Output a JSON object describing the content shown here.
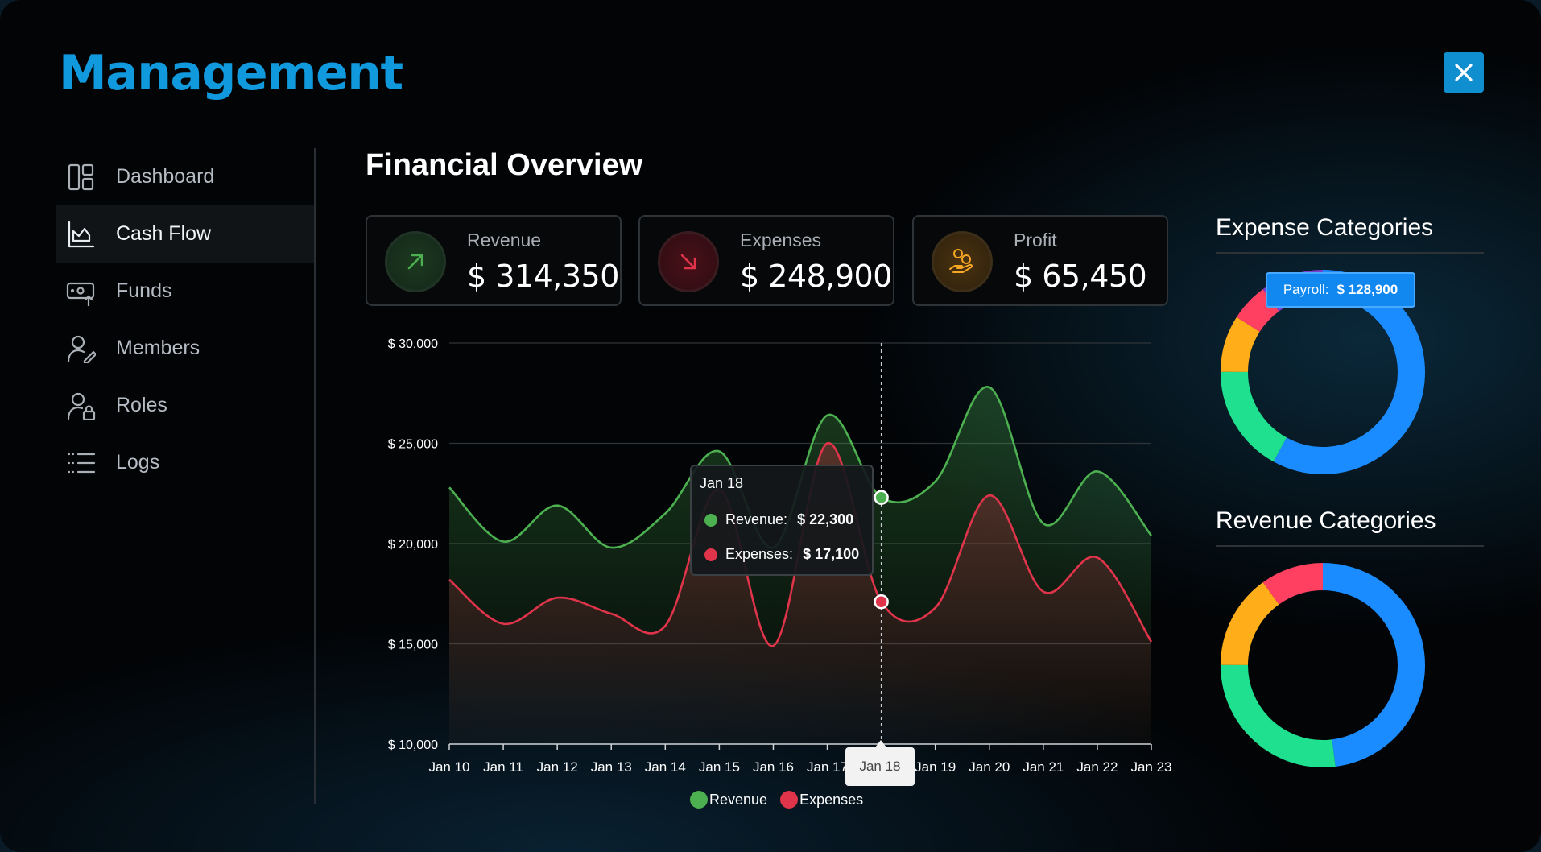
{
  "app": {
    "title": "Management"
  },
  "sidebar": {
    "items": [
      {
        "label": "Dashboard",
        "icon": "dashboard-icon"
      },
      {
        "label": "Cash Flow",
        "icon": "chart-icon",
        "active": true
      },
      {
        "label": "Funds",
        "icon": "funds-icon"
      },
      {
        "label": "Members",
        "icon": "member-icon"
      },
      {
        "label": "Roles",
        "icon": "role-icon"
      },
      {
        "label": "Logs",
        "icon": "list-icon"
      }
    ]
  },
  "main": {
    "title": "Financial Overview",
    "cards": [
      {
        "label": "Revenue",
        "value": "$ 314,350",
        "icon": "arrow-up-right-icon",
        "color": "#4caf50"
      },
      {
        "label": "Expenses",
        "value": "$ 248,900",
        "icon": "arrow-down-right-icon",
        "color": "#e0344b"
      },
      {
        "label": "Profit",
        "value": "$ 65,450",
        "icon": "hand-coins-icon",
        "color": "#f5a623"
      }
    ]
  },
  "chart_data": {
    "type": "area",
    "x": [
      "Jan 10",
      "Jan 11",
      "Jan 12",
      "Jan 13",
      "Jan 14",
      "Jan 15",
      "Jan 16",
      "Jan 17",
      "Jan 18",
      "Jan 19",
      "Jan 20",
      "Jan 21",
      "Jan 22",
      "Jan 23"
    ],
    "yticks": [
      "$ 10,000",
      "$ 15,000",
      "$ 20,000",
      "$ 25,000",
      "$ 30,000"
    ],
    "ylim": [
      10000,
      30000
    ],
    "series": [
      {
        "name": "Revenue",
        "color": "#4caf50",
        "values": [
          22800,
          20100,
          21900,
          19800,
          21500,
          24600,
          19800,
          26400,
          22300,
          23100,
          27800,
          21000,
          23600,
          20400
        ]
      },
      {
        "name": "Expenses",
        "color": "#e0344b",
        "values": [
          18200,
          16000,
          17300,
          16500,
          15900,
          22700,
          14900,
          25000,
          17100,
          16800,
          22400,
          17600,
          19300,
          15100
        ]
      }
    ],
    "grid": true,
    "legend": "bottom"
  },
  "tooltip": {
    "date": "Jan 18",
    "revenue_label": "Revenue:",
    "revenue_value": "$ 22,300",
    "expenses_label": "Expenses:",
    "expenses_value": "$ 17,100"
  },
  "x_tooltip": "Jan 18",
  "legend": {
    "revenue": "Revenue",
    "expenses": "Expenses"
  },
  "expense_categories": {
    "title": "Expense Categories",
    "tooltip_label": "Payroll:",
    "tooltip_value": "$ 128,900",
    "segments": [
      {
        "value": 0.58,
        "color": "#1a8cff"
      },
      {
        "value": 0.17,
        "color": "#1fe08f"
      },
      {
        "value": 0.09,
        "color": "#ffae1a"
      },
      {
        "value": 0.06,
        "color": "#ff4060"
      },
      {
        "value": 0.1,
        "color": "#7a3fcf"
      }
    ]
  },
  "revenue_categories": {
    "title": "Revenue Categories",
    "segments": [
      {
        "value": 0.48,
        "color": "#1a8cff"
      },
      {
        "value": 0.27,
        "color": "#1fe08f"
      },
      {
        "value": 0.15,
        "color": "#ffae1a"
      },
      {
        "value": 0.1,
        "color": "#ff4060"
      }
    ]
  }
}
